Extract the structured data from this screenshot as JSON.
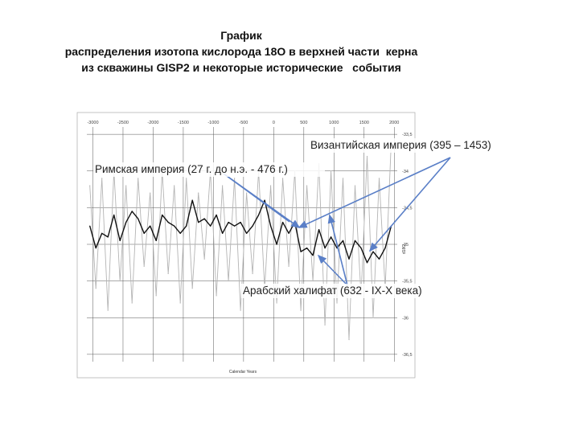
{
  "title": {
    "line1": "График",
    "line2": "распределения изотопа кислорода 18О в верхней части  керна",
    "line3": "из скважины GISP2 и некоторые исторические   события"
  },
  "colors": {
    "raw_series": "#b4b4b4",
    "smooth_series": "#111111",
    "arrow": "#5a7fc7",
    "grid": "#555555"
  },
  "chart_data": {
    "type": "line",
    "xlabel": "Calendar Years",
    "ylabel": "d18O",
    "xlim": [
      -3100,
      2050
    ],
    "ylim": [
      -36.6,
      -33.4
    ],
    "y_inverted": false,
    "x_ticks": [
      -3000,
      -2500,
      -2000,
      -1500,
      -1000,
      -500,
      0,
      500,
      1000,
      1500,
      2000
    ],
    "y_ticks": [
      -33.5,
      -34,
      -34.5,
      -35,
      -35.5,
      -36,
      -36.5
    ],
    "y_tick_labels": [
      "-33,5",
      "-34",
      "-34,5",
      "-35",
      "-35,5",
      "-36",
      "-36,5"
    ],
    "grid": true,
    "series": [
      {
        "role": "smoothed",
        "x": [
          -3050,
          -2950,
          -2850,
          -2750,
          -2650,
          -2550,
          -2450,
          -2350,
          -2250,
          -2150,
          -2050,
          -1950,
          -1850,
          -1750,
          -1650,
          -1550,
          -1450,
          -1350,
          -1250,
          -1150,
          -1050,
          -950,
          -850,
          -750,
          -650,
          -550,
          -450,
          -350,
          -250,
          -150,
          -50,
          50,
          150,
          250,
          350,
          450,
          550,
          650,
          750,
          850,
          950,
          1050,
          1150,
          1250,
          1350,
          1450,
          1550,
          1650,
          1750,
          1850,
          1950
        ],
        "y": [
          -34.75,
          -35.05,
          -34.85,
          -34.9,
          -34.6,
          -34.95,
          -34.7,
          -34.55,
          -34.65,
          -34.85,
          -34.75,
          -34.95,
          -34.6,
          -34.7,
          -34.75,
          -34.85,
          -34.75,
          -34.4,
          -34.7,
          -34.65,
          -34.75,
          -34.6,
          -34.85,
          -34.7,
          -34.75,
          -34.7,
          -34.85,
          -34.75,
          -34.6,
          -34.4,
          -34.75,
          -35.0,
          -34.7,
          -34.85,
          -34.7,
          -35.1,
          -35.05,
          -35.15,
          -34.8,
          -35.05,
          -34.9,
          -35.05,
          -34.95,
          -35.2,
          -34.95,
          -35.05,
          -35.25,
          -35.1,
          -35.2,
          -35.05,
          -34.75
        ]
      },
      {
        "role": "raw",
        "x": [
          -3050,
          -2950,
          -2850,
          -2750,
          -2650,
          -2550,
          -2450,
          -2350,
          -2250,
          -2150,
          -2050,
          -1950,
          -1850,
          -1750,
          -1650,
          -1550,
          -1450,
          -1350,
          -1250,
          -1150,
          -1050,
          -950,
          -850,
          -750,
          -650,
          -550,
          -450,
          -350,
          -250,
          -150,
          -50,
          50,
          150,
          250,
          350,
          450,
          550,
          650,
          750,
          850,
          950,
          1050,
          1150,
          1250,
          1350,
          1450,
          1550,
          1650,
          1750,
          1850,
          1950
        ],
        "y": [
          -34.2,
          -35.6,
          -34.1,
          -35.9,
          -34.0,
          -35.5,
          -34.2,
          -35.8,
          -34.1,
          -35.3,
          -34.3,
          -35.7,
          -34.0,
          -35.4,
          -34.2,
          -35.8,
          -34.1,
          -35.6,
          -34.3,
          -35.2,
          -34.0,
          -35.7,
          -34.2,
          -35.5,
          -34.1,
          -35.9,
          -34.3,
          -35.4,
          -34.0,
          -35.6,
          -34.2,
          -35.8,
          -34.1,
          -35.3,
          -34.0,
          -35.9,
          -34.2,
          -35.5,
          -33.9,
          -36.1,
          -34.0,
          -35.8,
          -34.1,
          -36.3,
          -34.2,
          -35.7,
          -33.8,
          -36.0,
          -34.1,
          -35.6,
          -33.6
        ]
      }
    ],
    "annotations": [
      {
        "text": "Римская империя (27 г. до н.э. -  476 г.)"
      },
      {
        "text": "Византийская империя (395 – 1453)"
      },
      {
        "text": "Арабский халифат (632 -  IX-X века)"
      }
    ]
  }
}
